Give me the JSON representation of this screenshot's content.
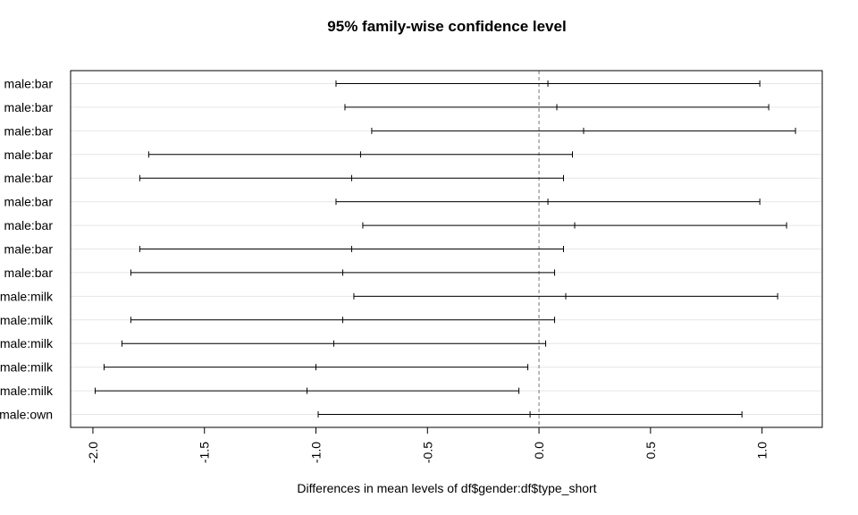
{
  "chart_data": {
    "type": "errorbar",
    "title": "95% family-wise confidence level",
    "xlabel": "Differences in mean levels of df$gender:df$type_short",
    "ylabel": "",
    "xlim": [
      -2.1,
      1.27
    ],
    "xticks": [
      -2.0,
      -1.5,
      -1.0,
      -0.5,
      0.0,
      0.5,
      1.0
    ],
    "xtick_labels": [
      "-2.0",
      "-1.5",
      "-1.0",
      "-0.5",
      "0.0",
      "0.5",
      "1.0"
    ],
    "grid": "horizontal",
    "reference_line": 0.0,
    "categories": [
      "male:bar",
      "male:bar",
      "male:bar",
      "male:bar",
      "male:bar",
      "male:bar",
      "male:bar",
      "male:bar",
      "male:bar",
      "male:milk",
      "male:milk",
      "male:milk",
      "male:milk",
      "male:milk",
      "male:own"
    ],
    "series": [
      {
        "lower": [
          -0.91,
          -0.87,
          -0.75,
          -1.75,
          -1.79,
          -0.91,
          -0.79,
          -1.79,
          -1.83,
          -0.83,
          -1.83,
          -1.87,
          -1.95,
          -1.99,
          -0.99
        ],
        "estimate": [
          0.04,
          0.08,
          0.2,
          -0.8,
          -0.84,
          0.04,
          0.16,
          -0.84,
          -0.88,
          0.12,
          -0.88,
          -0.92,
          -1.0,
          -1.04,
          -0.04
        ],
        "upper": [
          0.99,
          1.03,
          1.15,
          0.15,
          0.11,
          0.99,
          1.11,
          0.11,
          0.07,
          1.07,
          0.07,
          0.03,
          -0.05,
          -0.09,
          0.91
        ]
      }
    ]
  }
}
